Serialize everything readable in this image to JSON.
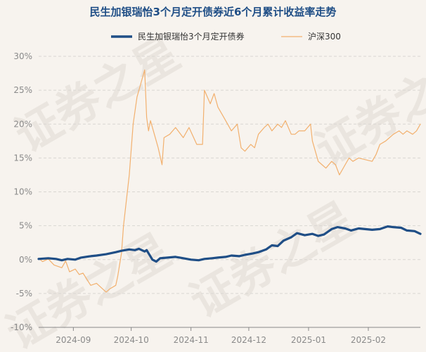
{
  "title": "民生加银瑞怡3个月定开债券近6个月累计收益率走势",
  "watermark": "证券之星",
  "colors": {
    "fund": "#1f4e86",
    "index": "#f2b06e",
    "title": "#1f4e86",
    "background": "#f7f3ee"
  },
  "chart_data": {
    "type": "line",
    "title": "民生加银瑞怡3个月定开债券近6个月累计收益率走势",
    "xlabel": "",
    "ylabel": "",
    "y_ticks": [
      "30%",
      "25%",
      "20%",
      "15%",
      "10%",
      "5%",
      "0%",
      "-5%",
      "-10%"
    ],
    "ylim": [
      -10,
      30
    ],
    "x_ticks": [
      "2024-09",
      "2024-10",
      "2024-11",
      "2024-12",
      "2025-01",
      "2025-02"
    ],
    "x_tick_dates": [
      "2024-09-01",
      "2024-10-01",
      "2024-11-01",
      "2024-12-01",
      "2025-01-01",
      "2025-02-01"
    ],
    "xlim": [
      "2024-08-14",
      "2025-02-28"
    ],
    "grid": true,
    "legend_position": "top",
    "series": [
      {
        "name": "民生加银瑞怡3个月定开债券",
        "color": "#1f4e86",
        "points": [
          [
            "2024-08-14",
            0.1
          ],
          [
            "2024-08-19",
            0.2
          ],
          [
            "2024-08-23",
            0.1
          ],
          [
            "2024-08-26",
            -0.1
          ],
          [
            "2024-08-29",
            0.1
          ],
          [
            "2024-09-02",
            0.0
          ],
          [
            "2024-09-05",
            0.3
          ],
          [
            "2024-09-10",
            0.5
          ],
          [
            "2024-09-13",
            0.6
          ],
          [
            "2024-09-18",
            0.8
          ],
          [
            "2024-09-23",
            1.1
          ],
          [
            "2024-09-26",
            1.3
          ],
          [
            "2024-09-30",
            1.5
          ],
          [
            "2024-10-03",
            1.4
          ],
          [
            "2024-10-05",
            1.6
          ],
          [
            "2024-10-08",
            1.2
          ],
          [
            "2024-10-09",
            1.4
          ],
          [
            "2024-10-12",
            0.0
          ],
          [
            "2024-10-14",
            -0.3
          ],
          [
            "2024-10-16",
            0.2
          ],
          [
            "2024-10-20",
            0.3
          ],
          [
            "2024-10-24",
            0.4
          ],
          [
            "2024-10-28",
            0.2
          ],
          [
            "2024-11-01",
            0.0
          ],
          [
            "2024-11-05",
            -0.1
          ],
          [
            "2024-11-08",
            0.1
          ],
          [
            "2024-11-12",
            0.2
          ],
          [
            "2024-11-15",
            0.3
          ],
          [
            "2024-11-19",
            0.4
          ],
          [
            "2024-11-22",
            0.6
          ],
          [
            "2024-11-26",
            0.5
          ],
          [
            "2024-11-29",
            0.7
          ],
          [
            "2024-12-03",
            0.9
          ],
          [
            "2024-12-06",
            1.1
          ],
          [
            "2024-12-10",
            1.5
          ],
          [
            "2024-12-13",
            2.1
          ],
          [
            "2024-12-16",
            2.0
          ],
          [
            "2024-12-19",
            2.8
          ],
          [
            "2024-12-23",
            3.3
          ],
          [
            "2024-12-26",
            3.9
          ],
          [
            "2024-12-30",
            3.6
          ],
          [
            "2025-01-03",
            3.8
          ],
          [
            "2025-01-06",
            3.5
          ],
          [
            "2025-01-09",
            3.7
          ],
          [
            "2025-01-13",
            4.5
          ],
          [
            "2025-01-16",
            4.8
          ],
          [
            "2025-01-20",
            4.6
          ],
          [
            "2025-01-23",
            4.3
          ],
          [
            "2025-01-27",
            4.6
          ],
          [
            "2025-02-03",
            4.4
          ],
          [
            "2025-02-07",
            4.5
          ],
          [
            "2025-02-11",
            4.9
          ],
          [
            "2025-02-14",
            4.8
          ],
          [
            "2025-02-18",
            4.7
          ],
          [
            "2025-02-21",
            4.3
          ],
          [
            "2025-02-25",
            4.2
          ],
          [
            "2025-02-28",
            3.8
          ]
        ]
      },
      {
        "name": "沪深300",
        "color": "#f2b06e",
        "points": [
          [
            "2024-08-14",
            0.2
          ],
          [
            "2024-08-16",
            -0.3
          ],
          [
            "2024-08-19",
            0.1
          ],
          [
            "2024-08-22",
            -0.8
          ],
          [
            "2024-08-26",
            -1.2
          ],
          [
            "2024-08-28",
            -0.2
          ],
          [
            "2024-08-30",
            -1.8
          ],
          [
            "2024-09-02",
            -1.4
          ],
          [
            "2024-09-04",
            -2.2
          ],
          [
            "2024-09-06",
            -2.0
          ],
          [
            "2024-09-10",
            -3.8
          ],
          [
            "2024-09-13",
            -3.5
          ],
          [
            "2024-09-18",
            -4.8
          ],
          [
            "2024-09-20",
            -4.3
          ],
          [
            "2024-09-23",
            -3.8
          ],
          [
            "2024-09-24",
            -2.5
          ],
          [
            "2024-09-26",
            1.0
          ],
          [
            "2024-09-27",
            5.0
          ],
          [
            "2024-09-30",
            12.5
          ],
          [
            "2024-10-02",
            20.0
          ],
          [
            "2024-10-04",
            24.0
          ],
          [
            "2024-10-08",
            28.0
          ],
          [
            "2024-10-09",
            21.0
          ],
          [
            "2024-10-10",
            19.0
          ],
          [
            "2024-10-11",
            20.5
          ],
          [
            "2024-10-14",
            17.5
          ],
          [
            "2024-10-15",
            16.5
          ],
          [
            "2024-10-17",
            14.0
          ],
          [
            "2024-10-18",
            18.0
          ],
          [
            "2024-10-21",
            18.5
          ],
          [
            "2024-10-24",
            19.5
          ],
          [
            "2024-10-28",
            18.0
          ],
          [
            "2024-10-31",
            19.5
          ],
          [
            "2024-11-04",
            17.0
          ],
          [
            "2024-11-07",
            17.0
          ],
          [
            "2024-11-08",
            25.0
          ],
          [
            "2024-11-11",
            23.0
          ],
          [
            "2024-11-13",
            24.5
          ],
          [
            "2024-11-15",
            22.5
          ],
          [
            "2024-11-18",
            21.0
          ],
          [
            "2024-11-20",
            20.0
          ],
          [
            "2024-11-22",
            19.0
          ],
          [
            "2024-11-25",
            20.0
          ],
          [
            "2024-11-27",
            16.5
          ],
          [
            "2024-11-29",
            16.0
          ],
          [
            "2024-12-02",
            17.0
          ],
          [
            "2024-12-04",
            16.5
          ],
          [
            "2024-12-06",
            18.5
          ],
          [
            "2024-12-09",
            19.5
          ],
          [
            "2024-12-11",
            20.0
          ],
          [
            "2024-12-13",
            19.0
          ],
          [
            "2024-12-16",
            20.0
          ],
          [
            "2024-12-18",
            19.5
          ],
          [
            "2024-12-20",
            20.5
          ],
          [
            "2024-12-23",
            18.5
          ],
          [
            "2024-12-25",
            18.5
          ],
          [
            "2024-12-27",
            19.0
          ],
          [
            "2024-12-30",
            19.0
          ],
          [
            "2025-01-02",
            20.0
          ],
          [
            "2025-01-03",
            17.5
          ],
          [
            "2025-01-06",
            14.5
          ],
          [
            "2025-01-08",
            14.0
          ],
          [
            "2025-01-10",
            13.5
          ],
          [
            "2025-01-13",
            14.5
          ],
          [
            "2025-01-15",
            14.0
          ],
          [
            "2025-01-17",
            12.5
          ],
          [
            "2025-01-20",
            14.0
          ],
          [
            "2025-01-22",
            15.0
          ],
          [
            "2025-01-24",
            14.5
          ],
          [
            "2025-01-27",
            15.0
          ],
          [
            "2025-02-03",
            14.5
          ],
          [
            "2025-02-05",
            15.5
          ],
          [
            "2025-02-07",
            17.0
          ],
          [
            "2025-02-10",
            17.5
          ],
          [
            "2025-02-12",
            18.0
          ],
          [
            "2025-02-14",
            18.5
          ],
          [
            "2025-02-17",
            19.0
          ],
          [
            "2025-02-19",
            18.5
          ],
          [
            "2025-02-21",
            19.0
          ],
          [
            "2025-02-24",
            18.5
          ],
          [
            "2025-02-26",
            19.0
          ],
          [
            "2025-02-28",
            20.0
          ]
        ]
      }
    ]
  }
}
